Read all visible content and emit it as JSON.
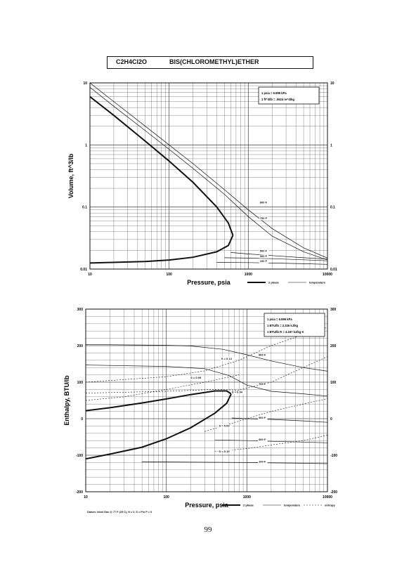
{
  "header": {
    "formula": "C2H4Cl2O",
    "name": "BIS(CHLOROMETHYL)ETHER"
  },
  "page_number": "99",
  "footnote": "Datum: Ideal Gas @ 77 F (25 C), H = 0, S = P/n P = 0",
  "chart_data": [
    {
      "type": "line",
      "id": "volume",
      "ylabel": "Volume, ft^3/lb",
      "xlabel": "Pressure,  psia",
      "xscale": "log",
      "yscale": "log",
      "xlim": [
        10,
        10000
      ],
      "ylim": [
        0.01,
        10
      ],
      "x_ticks": [
        "10",
        "100",
        "1000",
        "10000"
      ],
      "y_ticks": [
        "10",
        "1",
        "0.1",
        "0.01"
      ],
      "y_ticks_right": [
        "10",
        "1",
        "0.1",
        "0.01"
      ],
      "conversion": [
        "1 psia  =  6.895 kPa",
        "1 ft^3/lb  =  .0624 m^3/kg"
      ],
      "legend": [
        "2 phase",
        "temperature"
      ],
      "series": [
        {
          "kind": "sat-vapor",
          "x": [
            10,
            20,
            50,
            100,
            200,
            400,
            560,
            640
          ],
          "y": [
            6.0,
            3.0,
            1.15,
            0.55,
            0.25,
            0.1,
            0.055,
            0.035
          ]
        },
        {
          "kind": "sat-liquid",
          "x": [
            10,
            50,
            100,
            200,
            400,
            560,
            640
          ],
          "y": [
            0.0125,
            0.0132,
            0.014,
            0.0155,
            0.019,
            0.024,
            0.035
          ]
        },
        {
          "name": "800 F",
          "kind": "temperature",
          "x": [
            10,
            20,
            50,
            100,
            200,
            500,
            1000,
            2000,
            5000,
            10000
          ],
          "y": [
            10,
            5.0,
            2.0,
            1.0,
            0.5,
            0.19,
            0.09,
            0.045,
            0.022,
            0.015
          ]
        },
        {
          "name": "700 F",
          "kind": "temperature",
          "x": [
            10,
            20,
            50,
            100,
            200,
            500,
            1000,
            2000,
            5000,
            10000
          ],
          "y": [
            8.5,
            4.2,
            1.7,
            0.85,
            0.42,
            0.16,
            0.07,
            0.034,
            0.019,
            0.014
          ]
        },
        {
          "name": "500 F",
          "kind": "temperature",
          "x": [
            600,
            1000,
            2000,
            5000,
            10000
          ],
          "y": [
            0.0185,
            0.0175,
            0.0165,
            0.0152,
            0.0145
          ]
        },
        {
          "name": "300 F",
          "kind": "temperature",
          "x": [
            500,
            1000,
            2000,
            5000,
            10000
          ],
          "y": [
            0.0152,
            0.015,
            0.0147,
            0.0141,
            0.0136
          ]
        },
        {
          "name": "100 F",
          "kind": "temperature",
          "x": [
            400,
            1000,
            2000,
            5000,
            10000
          ],
          "y": [
            0.0128,
            0.0127,
            0.0125,
            0.0122,
            0.0119
          ]
        }
      ],
      "curve_labels": [
        {
          "text": "800 F",
          "x": 1400,
          "y": 0.115
        },
        {
          "text": "700 F",
          "x": 1400,
          "y": 0.064
        },
        {
          "text": "500 F",
          "x": 1400,
          "y": 0.019
        },
        {
          "text": "300 F",
          "x": 1400,
          "y": 0.0155
        },
        {
          "text": "100 F",
          "x": 1400,
          "y": 0.0129
        }
      ]
    },
    {
      "type": "line",
      "id": "enthalpy",
      "ylabel": "Enthalpy,  BTU/lb",
      "xlabel": "Pressure,  psia",
      "xscale": "log",
      "yscale": "linear",
      "xlim": [
        10,
        10000
      ],
      "ylim": [
        -200,
        300
      ],
      "x_ticks": [
        "10",
        "100",
        "1000",
        "10000"
      ],
      "y_ticks": [
        "300",
        "200",
        "100",
        "0",
        "-100",
        "-200"
      ],
      "y_ticks_right": [
        "300",
        "200",
        "100",
        "0",
        "-100",
        "-200"
      ],
      "conversion": [
        "1 psia  =  6.895 kPa",
        "1 BTU/lb  =  2.326 kJ/kg",
        "1 BTU/lb R  =  4.187 kJ/kg K"
      ],
      "legend": [
        "2 phase",
        "temperature",
        "entropy"
      ],
      "series": [
        {
          "kind": "sat-vapor",
          "x": [
            10,
            20,
            50,
            100,
            200,
            400,
            560,
            640
          ],
          "y": [
            22,
            30,
            43,
            54,
            66,
            76,
            76,
            68
          ]
        },
        {
          "kind": "sat-liquid",
          "x": [
            10,
            20,
            50,
            100,
            200,
            400,
            560,
            640
          ],
          "y": [
            -110,
            -97,
            -78,
            -55,
            -25,
            15,
            42,
            68
          ]
        },
        {
          "name": "800 F",
          "kind": "temperature",
          "x": [
            10,
            100,
            200,
            500,
            1000,
            2000,
            5000,
            10000
          ],
          "y": [
            203,
            201,
            199,
            190,
            175,
            158,
            140,
            130
          ]
        },
        {
          "name": "700 F",
          "kind": "temperature",
          "x": [
            10,
            100,
            300,
            600,
            1000,
            2000,
            5000,
            10000
          ],
          "y": [
            147,
            143,
            137,
            118,
            92,
            75,
            68,
            62
          ]
        },
        {
          "name": "500 F",
          "kind": "temperature",
          "x": [
            650,
            1000,
            2000,
            5000,
            10000
          ],
          "y": [
            2,
            0,
            -2,
            -6,
            -10
          ]
        },
        {
          "name": "300 F",
          "kind": "temperature",
          "x": [
            400,
            1000,
            2000,
            5000,
            10000
          ],
          "y": [
            -58,
            -60,
            -62,
            -64,
            -66
          ]
        },
        {
          "name": "100 F",
          "kind": "temperature",
          "x": [
            50,
            200,
            1000,
            2000,
            5000,
            10000
          ],
          "y": [
            -118,
            -119,
            -120,
            -121,
            -122,
            -123
          ]
        },
        {
          "name": "S = 0.14",
          "kind": "entropy",
          "x": [
            10,
            100,
            300,
            800,
            2000,
            5000,
            10000
          ],
          "y": [
            100,
            115,
            131,
            160,
            200,
            230,
            250
          ]
        },
        {
          "name": "S = 0.09",
          "kind": "entropy",
          "x": [
            10,
            30,
            100,
            300,
            800
          ],
          "y": [
            50,
            60,
            80,
            100,
            120
          ]
        },
        {
          "name": "S = 0.04",
          "kind": "entropy",
          "x": [
            10,
            100,
            400,
            800,
            2000,
            5000,
            10000
          ],
          "y": [
            70,
            75,
            80,
            78,
            100,
            140,
            170
          ]
        },
        {
          "name": "S = 0.09",
          "kind": "entropy",
          "x": [
            300,
            600,
            1000,
            2000,
            5000,
            10000
          ],
          "y": [
            -35,
            -15,
            0,
            20,
            40,
            55
          ]
        },
        {
          "name": "S = 0.15",
          "kind": "entropy",
          "x": [
            400,
            1000,
            2000,
            5000,
            10000
          ],
          "y": [
            -90,
            -82,
            -72,
            -60,
            -45
          ]
        }
      ],
      "curve_labels": [
        {
          "text": "800 F",
          "x": 1400,
          "y": 172
        },
        {
          "text": "700 F",
          "x": 1400,
          "y": 92
        },
        {
          "text": "500 F",
          "x": 1400,
          "y": 0
        },
        {
          "text": "300 F",
          "x": 1400,
          "y": -60
        },
        {
          "text": "100 F",
          "x": 1400,
          "y": -120
        },
        {
          "text": "S = 0.14",
          "x": 480,
          "y": 162
        },
        {
          "text": "S = 0.09",
          "x": 200,
          "y": 110
        },
        {
          "text": "S = 0.04",
          "x": 650,
          "y": 70
        },
        {
          "text": "S = 0.09",
          "x": 450,
          "y": -22
        },
        {
          "text": "S = 0.15",
          "x": 450,
          "y": -92
        }
      ]
    }
  ]
}
